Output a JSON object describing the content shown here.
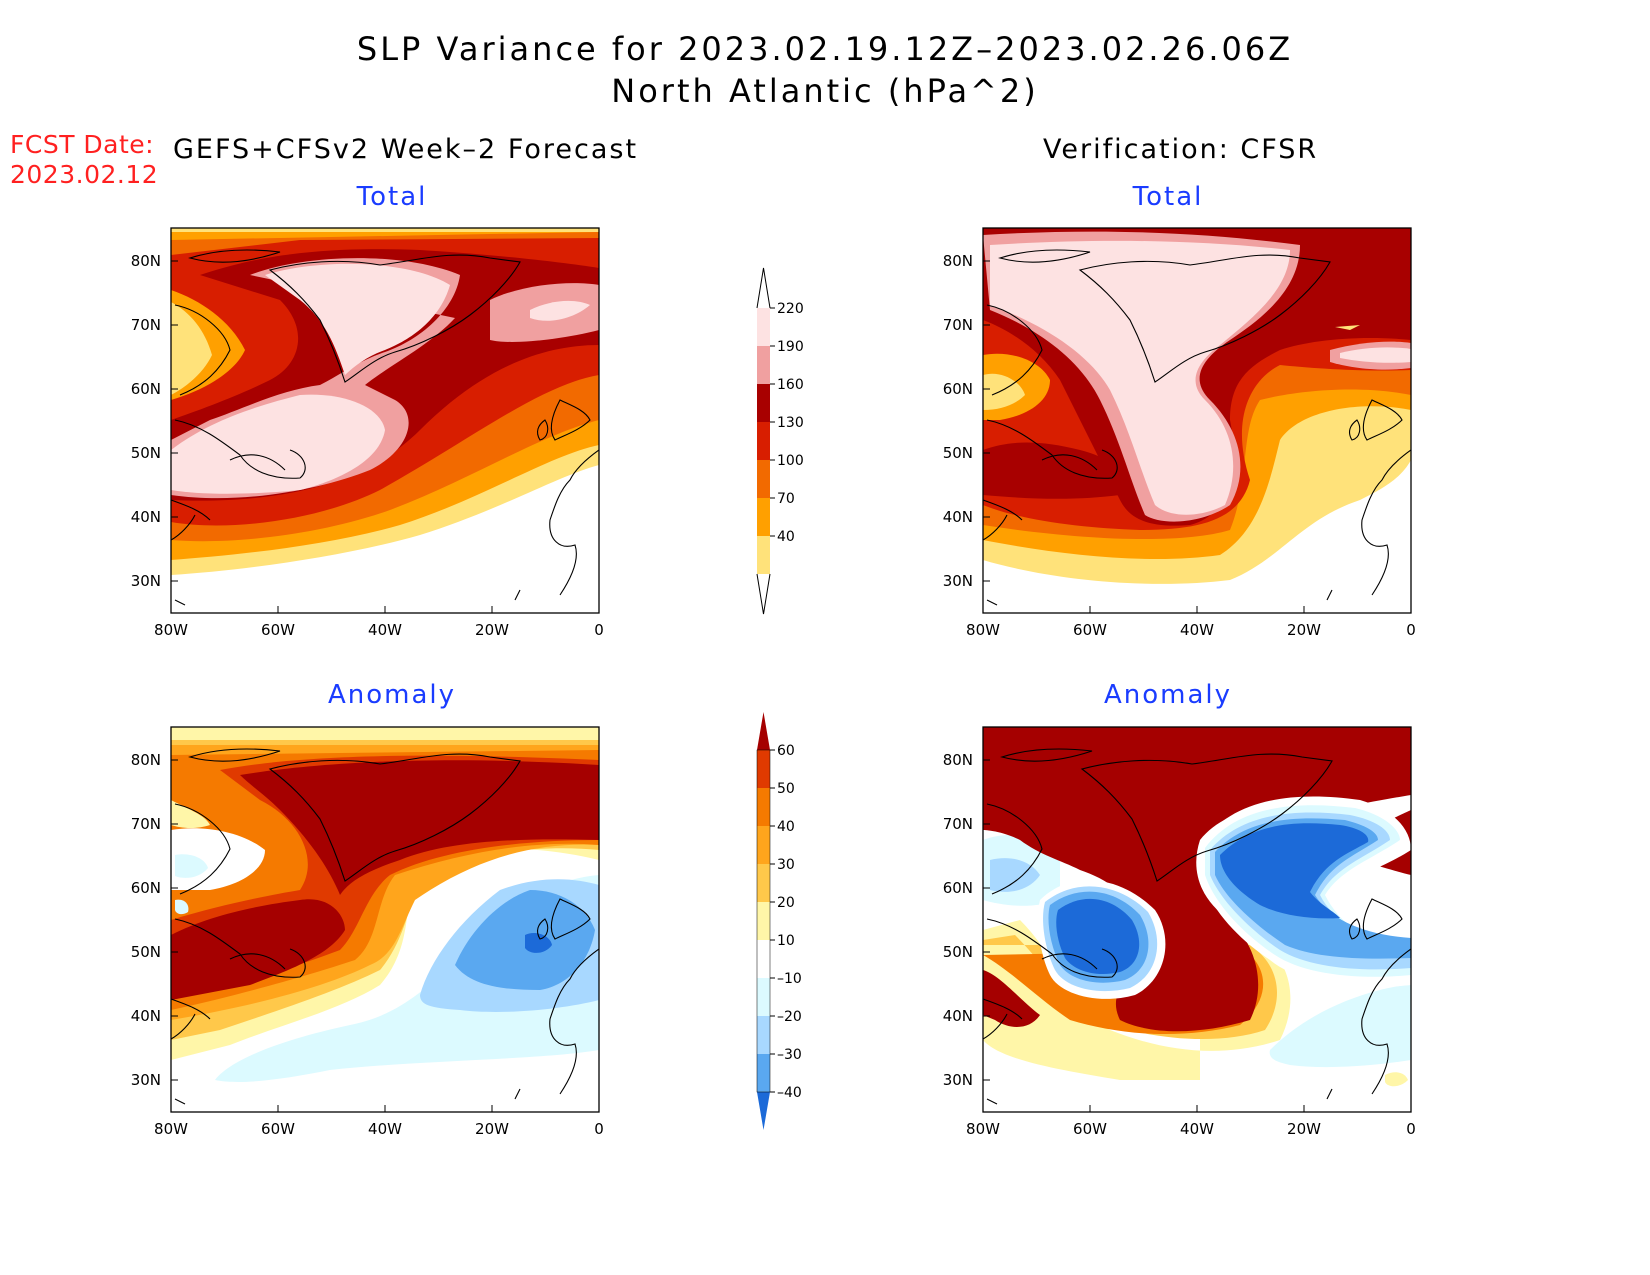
{
  "title": {
    "line1": "SLP Variance for 2023.02.19.12Z–2023.02.26.06Z",
    "line2": "North Atlantic (hPa^2)"
  },
  "fcst": {
    "label": "FCST Date:",
    "date": "2023.02.12"
  },
  "columns": {
    "left": "GEFS+CFSv2 Week–2 Forecast",
    "right": "Verification: CFSR"
  },
  "panels": {
    "forecast_total": "Total",
    "verification_total": "Total",
    "forecast_anomaly": "Anomaly",
    "verification_anomaly": "Anomaly"
  },
  "axes": {
    "lon_ticks": [
      "80W",
      "60W",
      "40W",
      "20W",
      "0"
    ],
    "lat_ticks": [
      "80N",
      "70N",
      "60N",
      "50N",
      "40N",
      "30N"
    ]
  },
  "colorbars": {
    "total": {
      "levels": [
        "220",
        "190",
        "160",
        "130",
        "100",
        "70",
        "40"
      ],
      "colors": [
        "#ffffff",
        "#fde2e2",
        "#f0a0a0",
        "#a80000",
        "#d81e00",
        "#f26a00",
        "#ffa000",
        "#ffe27a"
      ]
    },
    "anomaly": {
      "levels": [
        "60",
        "50",
        "40",
        "30",
        "20",
        "10",
        "–10",
        "–20",
        "–30",
        "–40"
      ],
      "colors": [
        "#a50000",
        "#e03a00",
        "#f57a00",
        "#ffa51c",
        "#ffc84a",
        "#fff6a8",
        "#ffffff",
        "#dcfaff",
        "#a8d8ff",
        "#5aa8f0",
        "#1c6ad8"
      ]
    }
  }
}
